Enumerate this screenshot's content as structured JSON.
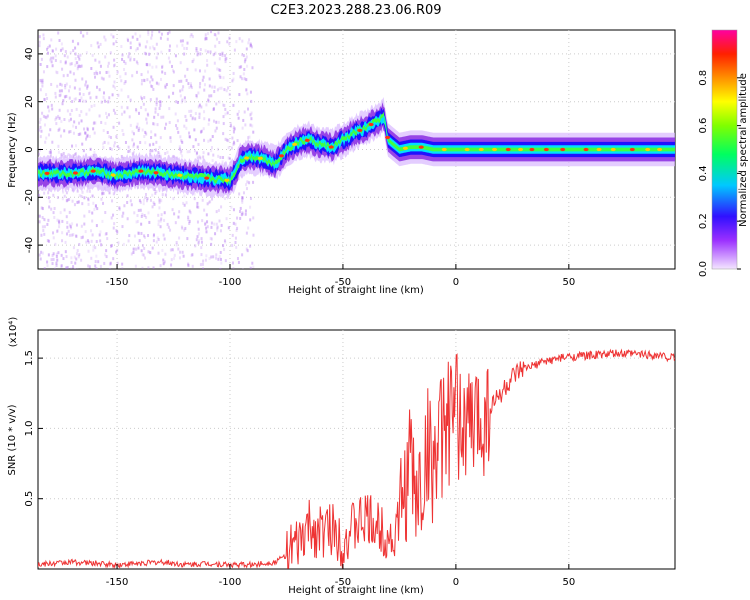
{
  "title": "C2E3.2023.288.23.06.R09",
  "chart_data": [
    {
      "type": "heatmap",
      "xlabel": "Height of straight line (km)",
      "ylabel": "Frequency (Hz)",
      "xlim": [
        -185,
        97
      ],
      "ylim": [
        -50,
        50
      ],
      "xticks": [
        -150,
        -100,
        -50,
        0,
        50
      ],
      "yticks": [
        -40,
        -20,
        0,
        20,
        40
      ],
      "grid": true,
      "ridge": {
        "x": [
          -185,
          -170,
          -160,
          -150,
          -140,
          -130,
          -120,
          -110,
          -100,
          -98,
          -95,
          -90,
          -85,
          -80,
          -75,
          -70,
          -65,
          -60,
          -55,
          -50,
          -45,
          -40,
          -35,
          -32,
          -30,
          -25,
          -20,
          -15,
          -10,
          -5,
          0,
          10,
          20,
          40,
          60,
          80,
          97
        ],
        "y": [
          -10,
          -10,
          -9,
          -11,
          -9,
          -10,
          -11,
          -12,
          -13,
          -10,
          -4,
          -3,
          -4,
          -6,
          0,
          3,
          4,
          2,
          1,
          4,
          7,
          9,
          12,
          14,
          4,
          0,
          1,
          1,
          0,
          0,
          0,
          0,
          0,
          0,
          0,
          0,
          0
        ]
      },
      "colorbar": {
        "label": "Normalized spectral amplitude",
        "range": [
          0.0,
          1.0
        ],
        "ticks": [
          0.0,
          0.2,
          0.4,
          0.6,
          0.8
        ],
        "colormap": "rainbow"
      }
    },
    {
      "type": "line",
      "xlabel": "Height of straight line (km)",
      "ylabel": "SNR (10 * v/v)",
      "yscale_label": "(x10⁴)",
      "xlim": [
        -185,
        97
      ],
      "ylim": [
        0,
        1.7
      ],
      "xticks": [
        -150,
        -100,
        -50,
        0,
        50
      ],
      "yticks": [
        0.5,
        1.0,
        1.5
      ],
      "grid": true,
      "color": "#ee3333",
      "series": [
        {
          "x": [
            -185,
            -170,
            -160,
            -150,
            -140,
            -130,
            -120,
            -110,
            -100,
            -90,
            -80,
            -75,
            -70,
            -65,
            -60,
            -55,
            -50,
            -45,
            -40,
            -35,
            -30,
            -28,
            -25,
            -20,
            -18,
            -15,
            -12,
            -10,
            -8,
            -5,
            0,
            5,
            10,
            15,
            20,
            25,
            30,
            40,
            50,
            60,
            70,
            80,
            90,
            97
          ],
          "y": [
            0.03,
            0.05,
            0.04,
            0.03,
            0.04,
            0.05,
            0.03,
            0.04,
            0.03,
            0.03,
            0.05,
            0.1,
            0.15,
            0.3,
            0.25,
            0.3,
            0.2,
            0.3,
            0.35,
            0.3,
            0.25,
            0.2,
            0.35,
            0.8,
            0.5,
            0.6,
            0.9,
            0.75,
            0.85,
            1.0,
            1.1,
            1.0,
            1.05,
            1.15,
            1.25,
            1.35,
            1.42,
            1.48,
            1.51,
            1.52,
            1.53,
            1.53,
            1.52,
            1.5
          ]
        }
      ]
    }
  ]
}
